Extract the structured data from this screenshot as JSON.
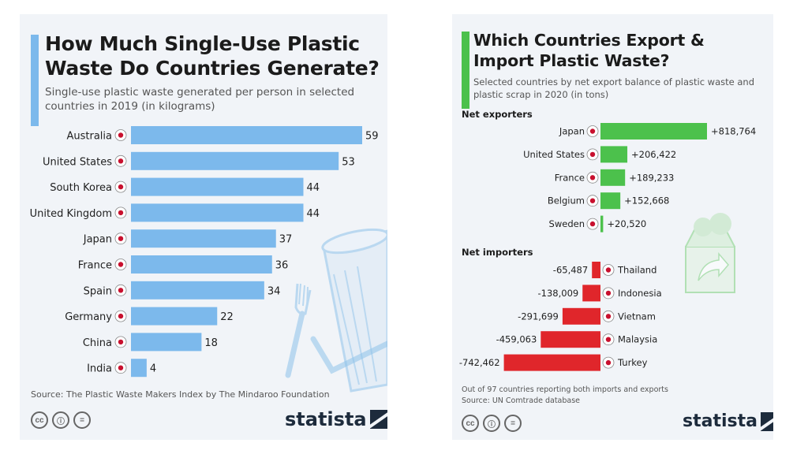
{
  "left": {
    "title": "How Much Single-Use Plastic Waste Do Countries Generate?",
    "subtitle": "Single-use plastic waste generated per person in selected countries in 2019 (in kilograms)",
    "source": "Source: The Plastic Waste Makers Index by The Mindaroo Foundation",
    "brand": "statista",
    "accent_color": "#7cb9ec",
    "cc_icons": [
      "cc-icon",
      "attribution-icon",
      "no-derivatives-icon"
    ]
  },
  "right": {
    "title": "Which Countries Export & Import Plastic Waste?",
    "subtitle": "Selected countries by net export balance of plastic waste and plastic scrap in 2020 (in tons)",
    "exporters_label": "Net exporters",
    "importers_label": "Net importers",
    "source_line1": "Out of 97 countries reporting both imports and exports",
    "source_line2": "Source: UN Comtrade database",
    "brand": "statista",
    "cc_icons": [
      "cc-icon",
      "attribution-icon",
      "no-derivatives-icon"
    ]
  },
  "chart_data": [
    {
      "type": "bar",
      "orientation": "horizontal",
      "title": "How Much Single-Use Plastic Waste Do Countries Generate?",
      "subtitle": "Single-use plastic waste generated per person in selected countries in 2019 (in kilograms)",
      "categories": [
        "Australia",
        "United States",
        "South Korea",
        "United Kingdom",
        "Japan",
        "France",
        "Spain",
        "Germany",
        "China",
        "India"
      ],
      "values": [
        59,
        53,
        44,
        44,
        37,
        36,
        34,
        22,
        18,
        4
      ],
      "labels": [
        "59",
        "53",
        "44",
        "44",
        "37",
        "36",
        "34",
        "22",
        "18",
        "4"
      ],
      "color": "#7cb9ec",
      "xlim": [
        0,
        59
      ]
    },
    {
      "type": "bar",
      "orientation": "horizontal",
      "title": "Which Countries Export & Import Plastic Waste?",
      "subtitle": "Selected countries by net export balance of plastic waste and plastic scrap in 2020 (in tons)",
      "groups": [
        {
          "name": "Net exporters",
          "color": "#4cc14c",
          "categories": [
            "Japan",
            "United States",
            "France",
            "Belgium",
            "Sweden"
          ],
          "values": [
            818764,
            206422,
            189233,
            152668,
            20520
          ],
          "labels": [
            "+818,764",
            "+206,422",
            "+189,233",
            "+152,668",
            "+20,520"
          ]
        },
        {
          "name": "Net importers",
          "color": "#e0262b",
          "categories": [
            "Thailand",
            "Indonesia",
            "Vietnam",
            "Malaysia",
            "Turkey"
          ],
          "values": [
            -65487,
            -138009,
            -291699,
            -459063,
            -742462
          ],
          "labels": [
            "-65,487",
            "-138,009",
            "-291,699",
            "-459,063",
            "-742,462"
          ]
        }
      ]
    }
  ]
}
